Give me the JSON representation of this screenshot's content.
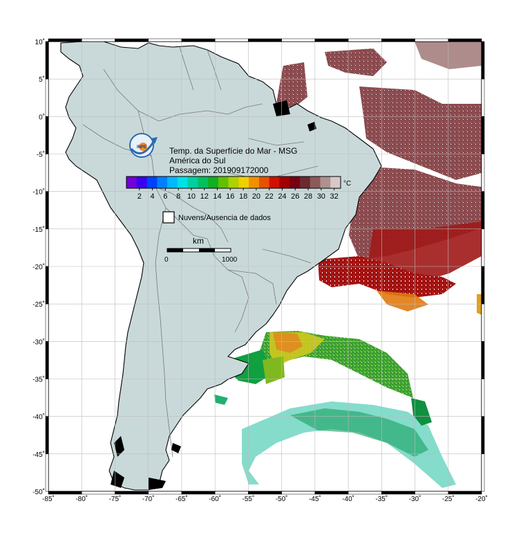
{
  "map": {
    "title": "Temp. da Superfície do Mar - MSG",
    "region": "América do Sul",
    "pass": "Passagem: 201909172000",
    "unit": "°C",
    "legend_label": "Nuvens/Ausencia de dados",
    "scale_unit": "km",
    "scale_start": "0",
    "scale_end": "1000",
    "logo_text": "INPE",
    "lon_range": [
      -85,
      -20
    ],
    "lat_range": [
      -50,
      10
    ],
    "lon_ticks": [
      "-85˚",
      "-80˚",
      "-75˚",
      "-70˚",
      "-65˚",
      "-60˚",
      "-55˚",
      "-50˚",
      "-45˚",
      "-40˚",
      "-35˚",
      "-30˚",
      "-25˚",
      "-20˚"
    ],
    "lat_ticks": [
      "10˚",
      "5˚",
      "0˚",
      "-5˚",
      "-10˚",
      "-15˚",
      "-20˚",
      "-25˚",
      "-30˚",
      "-35˚",
      "-40˚",
      "-45˚",
      "-50˚"
    ],
    "colorbar_ticks": [
      "2",
      "4",
      "6",
      "8",
      "10",
      "12",
      "14",
      "16",
      "18",
      "20",
      "22",
      "24",
      "26",
      "28",
      "30",
      "32"
    ],
    "colorbar_range": [
      0,
      33
    ],
    "colorbar_colors": [
      "#7000d8",
      "#3800f0",
      "#0040ff",
      "#0080ff",
      "#00b8ff",
      "#00e0e8",
      "#00d0a0",
      "#00c060",
      "#10b020",
      "#60c000",
      "#b0d000",
      "#f0d000",
      "#f09000",
      "#e85000",
      "#d01000",
      "#a00000",
      "#780010",
      "#6a2a30",
      "#8a5a5a",
      "#b09090",
      "#d8c8c8"
    ],
    "colors": {
      "land": "#c9d9da",
      "ocean": "#ffffff",
      "border": "#000000",
      "grid": "#bbbbbb"
    }
  }
}
